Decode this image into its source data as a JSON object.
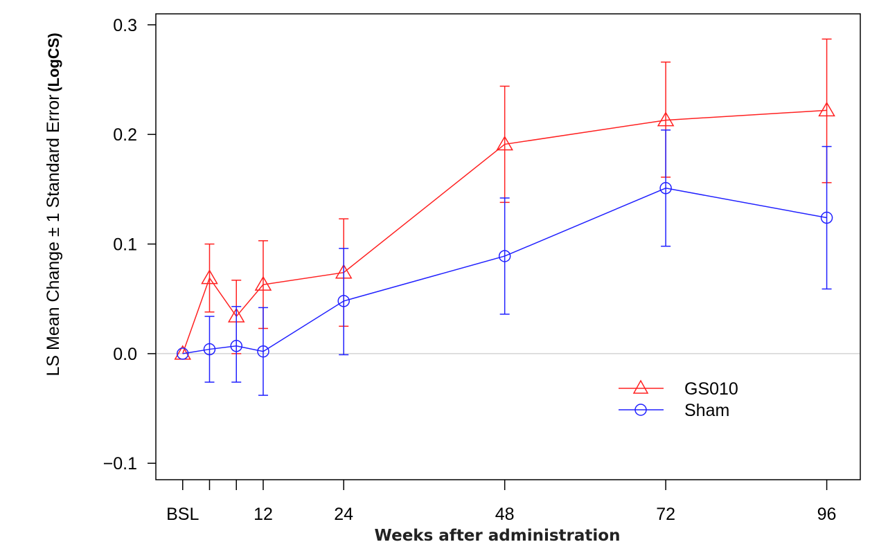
{
  "chart_data": {
    "type": "line",
    "xlabel": "Weeks after administration",
    "ylabel": "LS Mean Change ± 1 Standard Error",
    "ylabel_unit": "(LogCS)",
    "x": [
      0,
      4,
      8,
      12,
      24,
      48,
      72,
      96
    ],
    "x_tick_values": [
      0,
      4,
      8,
      12,
      24,
      48,
      72,
      96
    ],
    "x_tick_labels": [
      "BSL",
      "",
      "",
      "12",
      "24",
      "48",
      "72",
      "96"
    ],
    "xlim": [
      -4,
      101
    ],
    "ylim": [
      -0.115,
      0.31
    ],
    "y_ticks": [
      -0.1,
      0.0,
      0.1,
      0.2,
      0.3
    ],
    "y_tick_labels": [
      "−0.1",
      "0.0",
      "0.1",
      "0.2",
      "0.3"
    ],
    "reference_line": 0,
    "grid": false,
    "legend_position": "bottom-right",
    "series": [
      {
        "name": "GS010",
        "color": "#ff2020",
        "marker": "triangle",
        "values": [
          0.0,
          0.069,
          0.034,
          0.063,
          0.074,
          0.191,
          0.213,
          0.222
        ],
        "upper": [
          0.0,
          0.1,
          0.067,
          0.103,
          0.123,
          0.244,
          0.266,
          0.287
        ],
        "lower": [
          0.0,
          0.038,
          0.0,
          0.023,
          0.025,
          0.138,
          0.161,
          0.156
        ]
      },
      {
        "name": "Sham",
        "color": "#2020ff",
        "marker": "circle",
        "values": [
          0.0,
          0.004,
          0.007,
          0.002,
          0.048,
          0.089,
          0.151,
          0.124
        ],
        "upper": [
          0.0,
          0.034,
          0.043,
          0.042,
          0.096,
          0.142,
          0.204,
          0.189
        ],
        "lower": [
          0.0,
          -0.026,
          -0.026,
          -0.038,
          -0.001,
          0.036,
          0.098,
          0.059
        ]
      }
    ]
  }
}
